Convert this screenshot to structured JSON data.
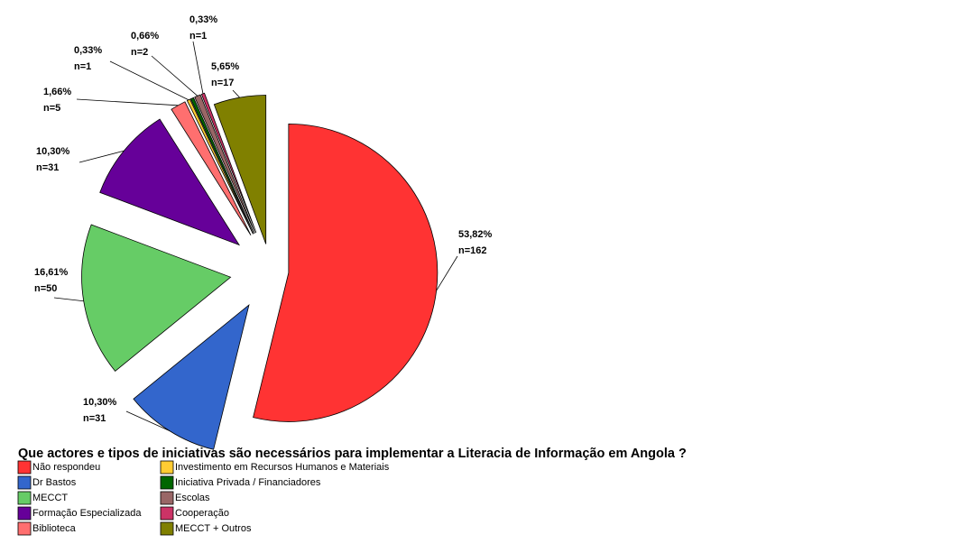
{
  "chart_data": {
    "type": "pie",
    "title": "Que actores e tipos de iniciativas são necessários para implementar a Literacia de Informação em Angola ?",
    "categories": [
      "Não respondeu",
      "Dr Bastos",
      "MECCT",
      "Formação Especializada",
      "Biblioteca",
      "Investimento em Recursos Humanos e Materiais",
      "Iniciativa Privada / Financiadores",
      "Escolas",
      "Cooperação",
      "MECCT + Outros"
    ],
    "values": [
      53.82,
      10.3,
      16.61,
      10.3,
      1.66,
      0.33,
      0.33,
      0.66,
      0.33,
      5.65
    ],
    "value_labels": [
      "53,82%",
      "10,30%",
      "16,61%",
      "10,30%",
      "1,66%",
      "0,33%",
      null,
      "0,66%",
      "0,33%",
      "5,65%"
    ],
    "count_labels": [
      "n=162",
      "n=31",
      "n=50",
      "n=31",
      "n=5",
      "n=1",
      null,
      "n=2",
      "n=1",
      "n=17"
    ],
    "colors": [
      "#ff3333",
      "#3366cc",
      "#66cc66",
      "#660099",
      "#ff6f6f",
      "#ffcc33",
      "#006600",
      "#996666",
      "#cc3366",
      "#808000"
    ],
    "legend": "bottom"
  }
}
